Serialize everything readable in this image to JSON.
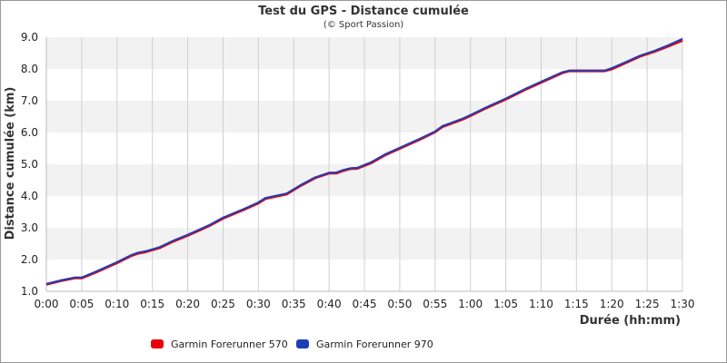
{
  "chart_data": {
    "type": "line",
    "title": "Test du GPS - Distance cumulée",
    "subtitle": "(© Sport Passion)",
    "xlabel": "Durée (hh:mm)",
    "ylabel": "Distance cumulée (km)",
    "x_ticks": [
      "0:00",
      "0:05",
      "0:10",
      "0:15",
      "0:20",
      "0:25",
      "0:30",
      "0:35",
      "0:40",
      "0:45",
      "0:50",
      "0:55",
      "1:00",
      "1:05",
      "1:10",
      "1:15",
      "1:20",
      "1:25",
      "1:30"
    ],
    "y_ticks": [
      "1.0",
      "2.0",
      "3.0",
      "4.0",
      "5.0",
      "6.0",
      "7.0",
      "8.0",
      "9.0"
    ],
    "xlim": [
      "0:00",
      "1:30"
    ],
    "ylim": [
      1.0,
      9.0
    ],
    "grid": "vertical lines and alternating horizontal bands",
    "legend_position": "bottom-left",
    "series": [
      {
        "name": "Garmin Forerunner 570",
        "color": "#e8000b",
        "x": [
          "0:00",
          "0:02",
          "0:04",
          "0:05",
          "0:07",
          "0:10",
          "0:12",
          "0:13",
          "0:14",
          "0:16",
          "0:18",
          "0:20",
          "0:23",
          "0:25",
          "0:28",
          "0:30",
          "0:31",
          "0:34",
          "0:36",
          "0:38",
          "0:40",
          "0:41",
          "0:42",
          "0:43",
          "0:44",
          "0:46",
          "0:48",
          "0:50",
          "0:53",
          "0:55",
          "0:56",
          "0:57",
          "0:59",
          "1:00",
          "1:02",
          "1:05",
          "1:08",
          "1:10",
          "1:12",
          "1:13",
          "1:14",
          "1:17",
          "1:19",
          "1:20",
          "1:22",
          "1:24",
          "1:26",
          "1:28",
          "1:30"
        ],
        "y": [
          1.22,
          1.33,
          1.42,
          1.42,
          1.6,
          1.9,
          2.12,
          2.2,
          2.24,
          2.37,
          2.58,
          2.76,
          3.06,
          3.3,
          3.58,
          3.78,
          3.92,
          4.06,
          4.33,
          4.57,
          4.72,
          4.72,
          4.8,
          4.86,
          4.87,
          5.05,
          5.3,
          5.5,
          5.8,
          6.02,
          6.18,
          6.26,
          6.43,
          6.53,
          6.75,
          7.05,
          7.38,
          7.58,
          7.78,
          7.88,
          7.94,
          7.94,
          7.94,
          8.0,
          8.2,
          8.4,
          8.55,
          8.72,
          8.9
        ]
      },
      {
        "name": "Garmin Forerunner 970",
        "color": "#1f3fb8",
        "x": [
          "0:00",
          "0:02",
          "0:04",
          "0:05",
          "0:07",
          "0:10",
          "0:12",
          "0:13",
          "0:14",
          "0:16",
          "0:18",
          "0:20",
          "0:23",
          "0:25",
          "0:28",
          "0:30",
          "0:31",
          "0:34",
          "0:36",
          "0:38",
          "0:40",
          "0:41",
          "0:42",
          "0:43",
          "0:44",
          "0:46",
          "0:48",
          "0:50",
          "0:53",
          "0:55",
          "0:56",
          "0:57",
          "0:59",
          "1:00",
          "1:02",
          "1:05",
          "1:08",
          "1:10",
          "1:12",
          "1:13",
          "1:14",
          "1:17",
          "1:19",
          "1:20",
          "1:22",
          "1:24",
          "1:26",
          "1:28",
          "1:30"
        ],
        "y": [
          1.23,
          1.34,
          1.43,
          1.43,
          1.62,
          1.92,
          2.14,
          2.22,
          2.26,
          2.39,
          2.6,
          2.78,
          3.08,
          3.32,
          3.6,
          3.8,
          3.94,
          4.08,
          4.35,
          4.58,
          4.73,
          4.74,
          4.82,
          4.87,
          4.89,
          5.07,
          5.32,
          5.52,
          5.82,
          6.03,
          6.2,
          6.28,
          6.45,
          6.55,
          6.77,
          7.07,
          7.4,
          7.6,
          7.8,
          7.9,
          7.95,
          7.95,
          7.95,
          8.03,
          8.22,
          8.42,
          8.57,
          8.75,
          8.95
        ]
      }
    ]
  }
}
